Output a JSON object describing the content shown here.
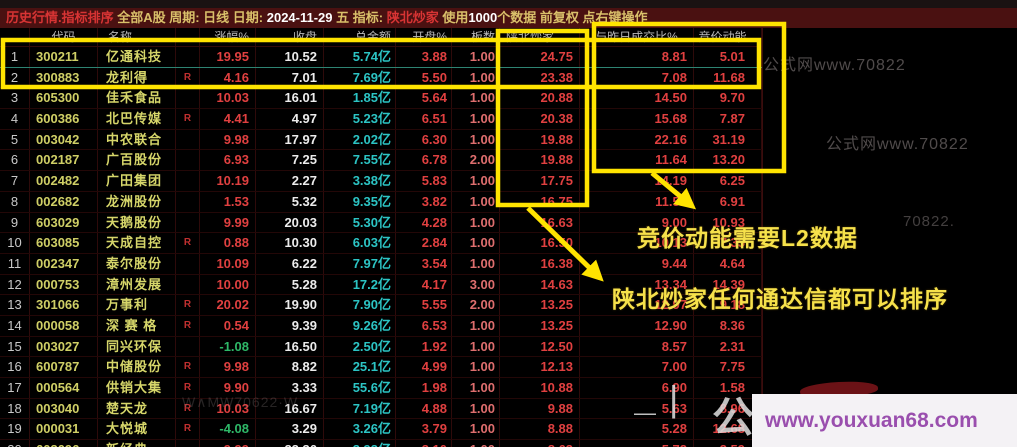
{
  "title_bar": {
    "segments": [
      {
        "t": "历史行情.指标排序 ",
        "c": "red"
      },
      {
        "t": "全部A股 周期: 日线 日期: ",
        "c": "tan"
      },
      {
        "t": "2024-11-29",
        "c": "white"
      },
      {
        "t": " 五 指标: ",
        "c": "tan"
      },
      {
        "t": "陕北炒家",
        "c": "red"
      },
      {
        "t": " 使用",
        "c": "tan"
      },
      {
        "t": "1000",
        "c": "white"
      },
      {
        "t": "个数据 前复权 点右键操作",
        "c": "tan"
      }
    ]
  },
  "table": {
    "headers": [
      "",
      "代码",
      "名称",
      "",
      "涨幅%",
      "收盘",
      "总金额",
      "开盘%",
      "板数",
      "陕北炒家",
      "与昨日成交比%",
      "竞价动能"
    ],
    "rows": [
      {
        "num": "1",
        "code": "300211",
        "name": "亿通科技",
        "r": "",
        "change": "19.95",
        "close": "10.52",
        "amount": "5.74亿",
        "open": "3.88",
        "boards": "1.00",
        "shanbei": "24.75",
        "ratio": "8.81",
        "energy": "5.01"
      },
      {
        "num": "2",
        "code": "300883",
        "name": "龙利得",
        "r": "R",
        "change": "4.16",
        "close": "7.01",
        "amount": "7.69亿",
        "open": "5.50",
        "boards": "1.00",
        "shanbei": "23.38",
        "ratio": "7.08",
        "energy": "11.68"
      },
      {
        "num": "3",
        "code": "605300",
        "name": "佳禾食品",
        "r": "",
        "change": "10.03",
        "close": "16.01",
        "amount": "1.85亿",
        "open": "5.64",
        "boards": "1.00",
        "shanbei": "20.88",
        "ratio": "14.50",
        "energy": "9.70"
      },
      {
        "num": "4",
        "code": "600386",
        "name": "北巴传媒",
        "r": "R",
        "change": "4.41",
        "close": "4.97",
        "amount": "5.23亿",
        "open": "6.51",
        "boards": "1.00",
        "shanbei": "20.38",
        "ratio": "15.68",
        "energy": "7.87"
      },
      {
        "num": "5",
        "code": "003042",
        "name": "中农联合",
        "r": "",
        "change": "9.98",
        "close": "17.97",
        "amount": "2.02亿",
        "open": "6.30",
        "boards": "1.00",
        "shanbei": "19.88",
        "ratio": "22.16",
        "energy": "31.19"
      },
      {
        "num": "6",
        "code": "002187",
        "name": "广百股份",
        "r": "",
        "change": "6.93",
        "close": "7.25",
        "amount": "7.55亿",
        "open": "6.78",
        "boards": "2.00",
        "shanbei": "19.88",
        "ratio": "11.64",
        "energy": "13.20"
      },
      {
        "num": "7",
        "code": "002482",
        "name": "广田集团",
        "r": "",
        "change": "10.19",
        "close": "2.27",
        "amount": "3.38亿",
        "open": "5.83",
        "boards": "1.00",
        "shanbei": "17.75",
        "ratio": "14.19",
        "energy": "6.25"
      },
      {
        "num": "8",
        "code": "002682",
        "name": "龙洲股份",
        "r": "",
        "change": "1.53",
        "close": "5.32",
        "amount": "9.35亿",
        "open": "3.82",
        "boards": "1.00",
        "shanbei": "16.75",
        "ratio": "11.51",
        "energy": "6.91"
      },
      {
        "num": "9",
        "code": "603029",
        "name": "天鹅股份",
        "r": "",
        "change": "9.99",
        "close": "20.03",
        "amount": "5.30亿",
        "open": "4.28",
        "boards": "1.00",
        "shanbei": "16.63",
        "ratio": "9.00",
        "energy": "10.93"
      },
      {
        "num": "10",
        "code": "603085",
        "name": "天成自控",
        "r": "R",
        "change": "0.88",
        "close": "10.30",
        "amount": "6.03亿",
        "open": "2.84",
        "boards": "1.00",
        "shanbei": "16.50",
        "ratio": "10.13",
        "energy": "7.35"
      },
      {
        "num": "11",
        "code": "002347",
        "name": "泰尔股份",
        "r": "",
        "change": "10.09",
        "close": "6.22",
        "amount": "7.97亿",
        "open": "3.54",
        "boards": "1.00",
        "shanbei": "16.38",
        "ratio": "9.44",
        "energy": "4.64"
      },
      {
        "num": "12",
        "code": "000753",
        "name": "漳州发展",
        "r": "",
        "change": "10.00",
        "close": "5.28",
        "amount": "17.2亿",
        "open": "4.17",
        "boards": "3.00",
        "shanbei": "14.63",
        "ratio": "13.34",
        "energy": "14.39"
      },
      {
        "num": "13",
        "code": "301066",
        "name": "万事利",
        "r": "R",
        "change": "20.02",
        "close": "19.90",
        "amount": "7.90亿",
        "open": "5.55",
        "boards": "2.00",
        "shanbei": "13.25",
        "ratio": "12.97",
        "energy": "9.18"
      },
      {
        "num": "14",
        "code": "000058",
        "name": "深 赛 格",
        "r": "R",
        "change": "0.54",
        "close": "9.39",
        "amount": "9.26亿",
        "open": "6.53",
        "boards": "1.00",
        "shanbei": "13.25",
        "ratio": "12.90",
        "energy": "8.36"
      },
      {
        "num": "15",
        "code": "003027",
        "name": "同兴环保",
        "r": "",
        "change": "-1.08",
        "close": "16.50",
        "amount": "2.50亿",
        "open": "1.92",
        "boards": "1.00",
        "shanbei": "12.50",
        "ratio": "8.57",
        "energy": "2.31"
      },
      {
        "num": "16",
        "code": "600787",
        "name": "中储股份",
        "r": "R",
        "change": "9.98",
        "close": "8.82",
        "amount": "25.1亿",
        "open": "4.99",
        "boards": "1.00",
        "shanbei": "12.13",
        "ratio": "7.00",
        "energy": "7.75"
      },
      {
        "num": "17",
        "code": "000564",
        "name": "供销大集",
        "r": "R",
        "change": "9.90",
        "close": "3.33",
        "amount": "55.6亿",
        "open": "1.98",
        "boards": "1.00",
        "shanbei": "10.88",
        "ratio": "6.90",
        "energy": "1.58"
      },
      {
        "num": "18",
        "code": "003040",
        "name": "楚天龙",
        "r": "R",
        "change": "10.03",
        "close": "16.67",
        "amount": "7.19亿",
        "open": "4.88",
        "boards": "1.00",
        "shanbei": "9.88",
        "ratio": "5.63",
        "energy": "8.96"
      },
      {
        "num": "19",
        "code": "000031",
        "name": "大悦城",
        "r": "R",
        "change": "-4.08",
        "close": "3.29",
        "amount": "3.26亿",
        "open": "3.79",
        "boards": "1.00",
        "shanbei": "8.88",
        "ratio": "5.28",
        "energy": "12.68"
      },
      {
        "num": "20",
        "code": "603096",
        "name": "新经典",
        "r": "",
        "change": "9.99",
        "close": "22.36",
        "amount": "3.93亿",
        "open": "3.10",
        "boards": "1.00",
        "shanbei": "8.63",
        "ratio": "5.72",
        "energy": "3.59"
      }
    ]
  },
  "annotations": {
    "note_energy": "竞价动能需要L2数据",
    "note_sort": "陕北炒家任何通达信都可以排序"
  },
  "watermarks": {
    "wm_top": "公式网www.70822",
    "wm_mid": "公式网www.70822",
    "wm_small": "70822.",
    "wm_left": "W∧MW70622·W",
    "glyph_bar": "|",
    "glyph_dash": "—",
    "glyph_gong": "公",
    "brand": "www.youxuan68.com"
  }
}
